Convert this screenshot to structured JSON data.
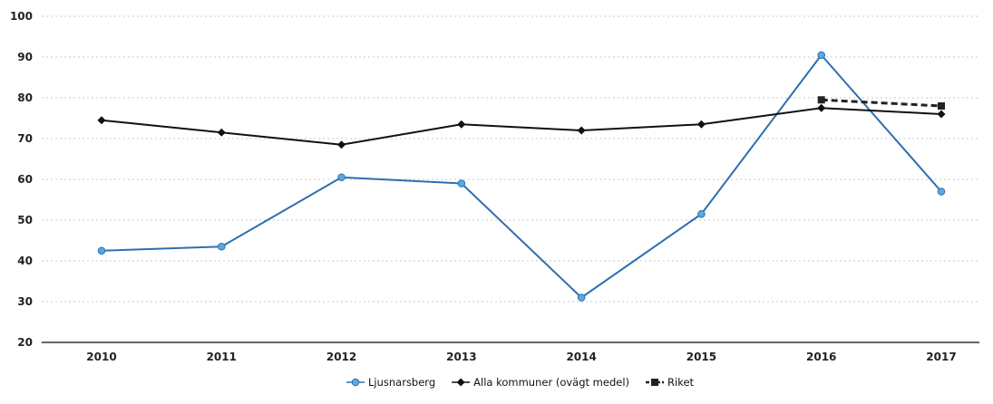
{
  "chart_data": {
    "type": "line",
    "x": [
      "2010",
      "2011",
      "2012",
      "2013",
      "2014",
      "2015",
      "2016",
      "2017"
    ],
    "ylim": [
      20,
      100
    ],
    "yticks": [
      20,
      30,
      40,
      50,
      60,
      70,
      80,
      90,
      100
    ],
    "grid": true,
    "legend_position": "bottom-center",
    "series": [
      {
        "name": "Ljusnarsberg",
        "values": [
          42.5,
          43.5,
          60.5,
          59,
          31,
          51.5,
          90.5,
          57
        ],
        "color": "#2e6fb0",
        "marker": "circle",
        "dash": "solid"
      },
      {
        "name": "Alla kommuner (ovägt medel)",
        "values": [
          74.5,
          71.5,
          68.5,
          73.5,
          72,
          73.5,
          77.5,
          76
        ],
        "color": "#111111",
        "marker": "diamond",
        "dash": "solid"
      },
      {
        "name": "Riket",
        "values": [
          null,
          null,
          null,
          null,
          null,
          null,
          79.5,
          78
        ],
        "color": "#222222",
        "marker": "square",
        "dash": "dashed"
      }
    ]
  }
}
